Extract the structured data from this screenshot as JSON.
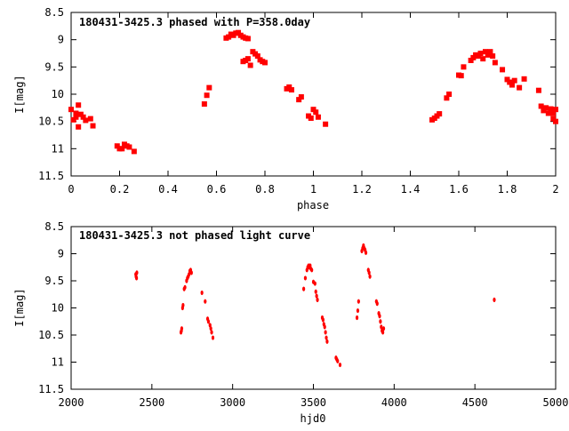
{
  "chart_data": [
    {
      "type": "scatter",
      "title": "180431-3425.3 phased with P=358.0day",
      "xlabel": "phase",
      "ylabel": "I[mag]",
      "xlim": [
        0,
        2
      ],
      "ylim": [
        8.5,
        11.5
      ],
      "y_inverted": true,
      "xticks": [
        "0",
        "0.2",
        "0.4",
        "0.6",
        "0.8",
        "1",
        "1.2",
        "1.4",
        "1.6",
        "1.8",
        "2"
      ],
      "yticks": [
        "8.5",
        "9",
        "9.5",
        "10",
        "10.5",
        "11",
        "11.5"
      ],
      "marker_color": "#ff0000",
      "marker": "square-filled",
      "points": [
        [
          0.0,
          10.28
        ],
        [
          0.01,
          10.47
        ],
        [
          0.02,
          10.42
        ],
        [
          0.02,
          10.35
        ],
        [
          0.03,
          10.2
        ],
        [
          0.03,
          10.6
        ],
        [
          0.04,
          10.37
        ],
        [
          0.05,
          10.42
        ],
        [
          0.06,
          10.48
        ],
        [
          0.08,
          10.45
        ],
        [
          0.09,
          10.58
        ],
        [
          0.19,
          10.95
        ],
        [
          0.2,
          11.0
        ],
        [
          0.21,
          11.0
        ],
        [
          0.22,
          10.92
        ],
        [
          0.23,
          10.95
        ],
        [
          0.24,
          10.97
        ],
        [
          0.26,
          11.05
        ],
        [
          0.55,
          10.18
        ],
        [
          0.56,
          10.02
        ],
        [
          0.57,
          9.88
        ],
        [
          0.64,
          8.97
        ],
        [
          0.65,
          8.95
        ],
        [
          0.66,
          8.9
        ],
        [
          0.67,
          8.92
        ],
        [
          0.68,
          8.88
        ],
        [
          0.69,
          8.87
        ],
        [
          0.7,
          8.92
        ],
        [
          0.71,
          8.95
        ],
        [
          0.72,
          8.97
        ],
        [
          0.73,
          8.98
        ],
        [
          0.71,
          9.4
        ],
        [
          0.72,
          9.38
        ],
        [
          0.73,
          9.35
        ],
        [
          0.74,
          9.47
        ],
        [
          0.75,
          9.22
        ],
        [
          0.76,
          9.26
        ],
        [
          0.77,
          9.3
        ],
        [
          0.78,
          9.37
        ],
        [
          0.79,
          9.4
        ],
        [
          0.8,
          9.42
        ],
        [
          0.89,
          9.9
        ],
        [
          0.9,
          9.87
        ],
        [
          0.91,
          9.92
        ],
        [
          0.94,
          10.1
        ],
        [
          0.95,
          10.05
        ],
        [
          0.98,
          10.4
        ],
        [
          0.99,
          10.44
        ],
        [
          1.0,
          10.28
        ],
        [
          1.01,
          10.33
        ],
        [
          1.02,
          10.42
        ],
        [
          1.05,
          10.55
        ],
        [
          1.49,
          10.47
        ],
        [
          1.5,
          10.44
        ],
        [
          1.51,
          10.4
        ],
        [
          1.52,
          10.36
        ],
        [
          1.55,
          10.07
        ],
        [
          1.56,
          10.0
        ],
        [
          1.6,
          9.65
        ],
        [
          1.61,
          9.66
        ],
        [
          1.62,
          9.5
        ],
        [
          1.65,
          9.38
        ],
        [
          1.66,
          9.33
        ],
        [
          1.67,
          9.28
        ],
        [
          1.68,
          9.3
        ],
        [
          1.69,
          9.25
        ],
        [
          1.7,
          9.35
        ],
        [
          1.71,
          9.22
        ],
        [
          1.72,
          9.28
        ],
        [
          1.73,
          9.22
        ],
        [
          1.74,
          9.3
        ],
        [
          1.75,
          9.42
        ],
        [
          1.78,
          9.55
        ],
        [
          1.8,
          9.73
        ],
        [
          1.81,
          9.78
        ],
        [
          1.82,
          9.83
        ],
        [
          1.83,
          9.75
        ],
        [
          1.85,
          9.88
        ],
        [
          1.87,
          9.72
        ],
        [
          1.93,
          9.93
        ],
        [
          1.94,
          10.22
        ],
        [
          1.95,
          10.3
        ],
        [
          1.96,
          10.25
        ],
        [
          1.97,
          10.35
        ],
        [
          1.98,
          10.27
        ],
        [
          1.99,
          10.45
        ],
        [
          2.0,
          10.5
        ],
        [
          1.99,
          10.35
        ],
        [
          2.0,
          10.28
        ]
      ]
    },
    {
      "type": "scatter",
      "title": "180431-3425.3 not phased light curve",
      "xlabel": "hjd0",
      "ylabel": "I[mag]",
      "xlim": [
        2000,
        5000
      ],
      "ylim": [
        8.5,
        11.5
      ],
      "y_inverted": true,
      "xticks": [
        "2000",
        "2500",
        "3000",
        "3500",
        "4000",
        "4500",
        "5000"
      ],
      "yticks": [
        "8.5",
        "9",
        "9.5",
        "10",
        "10.5",
        "11",
        "11.5"
      ],
      "marker_color": "#ff0000",
      "marker": "dot",
      "points": [
        [
          2400,
          9.38
        ],
        [
          2402,
          9.42
        ],
        [
          2405,
          9.45
        ],
        [
          2407,
          9.35
        ],
        [
          2680,
          10.45
        ],
        [
          2683,
          10.42
        ],
        [
          2685,
          10.38
        ],
        [
          2690,
          10.0
        ],
        [
          2693,
          9.95
        ],
        [
          2700,
          9.65
        ],
        [
          2705,
          9.62
        ],
        [
          2715,
          9.5
        ],
        [
          2720,
          9.45
        ],
        [
          2725,
          9.42
        ],
        [
          2730,
          9.38
        ],
        [
          2735,
          9.32
        ],
        [
          2740,
          9.3
        ],
        [
          2745,
          9.35
        ],
        [
          2810,
          9.72
        ],
        [
          2830,
          9.88
        ],
        [
          2845,
          10.2
        ],
        [
          2850,
          10.25
        ],
        [
          2860,
          10.32
        ],
        [
          2865,
          10.38
        ],
        [
          2870,
          10.45
        ],
        [
          2878,
          10.55
        ],
        [
          3440,
          9.65
        ],
        [
          3450,
          9.45
        ],
        [
          3460,
          9.3
        ],
        [
          3465,
          9.25
        ],
        [
          3470,
          9.22
        ],
        [
          3475,
          9.25
        ],
        [
          3480,
          9.22
        ],
        [
          3485,
          9.28
        ],
        [
          3490,
          9.3
        ],
        [
          3500,
          9.52
        ],
        [
          3510,
          9.55
        ],
        [
          3515,
          9.7
        ],
        [
          3520,
          9.78
        ],
        [
          3525,
          9.85
        ],
        [
          3555,
          10.18
        ],
        [
          3560,
          10.22
        ],
        [
          3565,
          10.3
        ],
        [
          3570,
          10.35
        ],
        [
          3575,
          10.45
        ],
        [
          3580,
          10.55
        ],
        [
          3585,
          10.62
        ],
        [
          3640,
          10.92
        ],
        [
          3645,
          10.95
        ],
        [
          3650,
          10.98
        ],
        [
          3665,
          11.05
        ],
        [
          3770,
          10.18
        ],
        [
          3775,
          10.05
        ],
        [
          3780,
          9.88
        ],
        [
          3800,
          8.95
        ],
        [
          3805,
          8.9
        ],
        [
          3810,
          8.85
        ],
        [
          3815,
          8.9
        ],
        [
          3820,
          8.93
        ],
        [
          3825,
          8.98
        ],
        [
          3840,
          9.3
        ],
        [
          3845,
          9.35
        ],
        [
          3850,
          9.42
        ],
        [
          3890,
          9.88
        ],
        [
          3895,
          9.92
        ],
        [
          3905,
          10.1
        ],
        [
          3910,
          10.15
        ],
        [
          3915,
          10.25
        ],
        [
          3920,
          10.35
        ],
        [
          3925,
          10.42
        ],
        [
          3930,
          10.45
        ],
        [
          3935,
          10.38
        ],
        [
          4620,
          9.85
        ]
      ]
    }
  ]
}
